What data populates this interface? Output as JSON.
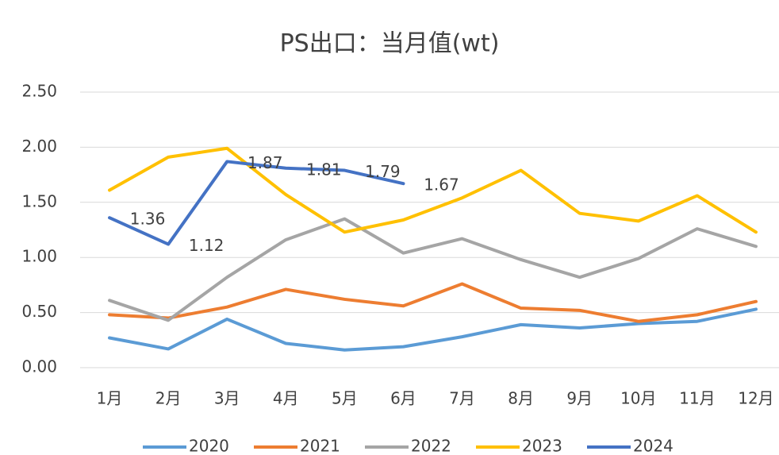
{
  "chart_data": {
    "type": "line",
    "title": "PS出口：当月值(wt)",
    "categories": [
      "1月",
      "2月",
      "3月",
      "4月",
      "5月",
      "6月",
      "7月",
      "8月",
      "9月",
      "10月",
      "11月",
      "12月"
    ],
    "series": [
      {
        "name": "2020",
        "color": "#5B9BD5",
        "values": [
          0.27,
          0.17,
          0.44,
          0.22,
          0.16,
          0.19,
          0.28,
          0.39,
          0.36,
          0.4,
          0.42,
          0.53
        ]
      },
      {
        "name": "2021",
        "color": "#ED7D31",
        "values": [
          0.48,
          0.45,
          0.55,
          0.71,
          0.62,
          0.56,
          0.76,
          0.54,
          0.52,
          0.42,
          0.48,
          0.6
        ]
      },
      {
        "name": "2022",
        "color": "#A5A5A5",
        "values": [
          0.61,
          0.43,
          0.82,
          1.16,
          1.35,
          1.04,
          1.17,
          0.98,
          0.82,
          0.99,
          1.26,
          1.1
        ]
      },
      {
        "name": "2023",
        "color": "#FFC000",
        "values": [
          1.61,
          1.91,
          1.99,
          1.57,
          1.23,
          1.34,
          1.54,
          1.79,
          1.4,
          1.33,
          1.56,
          1.23
        ]
      },
      {
        "name": "2024",
        "color": "#4472C4",
        "values": [
          1.36,
          1.12,
          1.87,
          1.81,
          1.79,
          1.67,
          null,
          null,
          null,
          null,
          null,
          null
        ],
        "data_labels": true
      }
    ],
    "ylim": [
      0,
      2.5
    ],
    "yticks": [
      {
        "value": 0,
        "label": "0.00"
      },
      {
        "value": 0.5,
        "label": "0.50"
      },
      {
        "value": 1,
        "label": "1.00"
      },
      {
        "value": 1.5,
        "label": "1.50"
      },
      {
        "value": 2,
        "label": "2.00"
      },
      {
        "value": 2.5,
        "label": "2.50"
      }
    ],
    "grid": true,
    "legend": "bottom"
  }
}
